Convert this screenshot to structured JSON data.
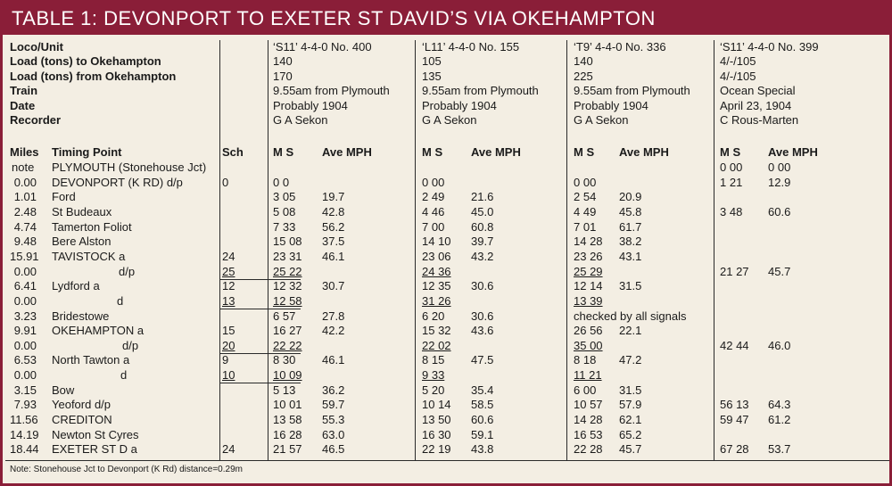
{
  "title": "TABLE 1: DEVONPORT TO EXETER ST DAVID’S VIA OKEHAMPTON",
  "info": [
    {
      "label": "Loco/Unit",
      "values": [
        "‘S11’ 4-4-0 No. 400",
        "‘L11’ 4-4-0 No. 155",
        "‘T9’ 4-4-0 No. 336",
        "‘S11’ 4-4-0 No. 399"
      ]
    },
    {
      "label": "Load (tons) to Okehampton",
      "values": [
        "140",
        "105",
        "140",
        "4/-/105"
      ]
    },
    {
      "label": "Load (tons) from Okehampton",
      "values": [
        "170",
        "135",
        "225",
        "4/-/105"
      ]
    },
    {
      "label": "Train",
      "values": [
        "9.55am from Plymouth",
        "9.55am from Plymouth",
        "9.55am from Plymouth",
        "Ocean Special"
      ]
    },
    {
      "label": "Date",
      "values": [
        "Probably 1904",
        "Probably 1904",
        "Probably 1904",
        "April 23, 1904"
      ]
    },
    {
      "label": "Recorder",
      "values": [
        "G A Sekon",
        "G A Sekon",
        "G A Sekon",
        "C Rous-Marten"
      ]
    }
  ],
  "headers": {
    "miles": "Miles",
    "timing_point": "Timing Point",
    "sch": "Sch",
    "ms": "M S",
    "ave_mph": "Ave MPH"
  },
  "rows": [
    {
      "miles": "note",
      "point": "PLYMOUTH (Stonehouse Jct)",
      "sch": "",
      "r": [
        [
          "",
          ""
        ],
        [
          "",
          ""
        ],
        [
          "",
          ""
        ],
        [
          "0 00",
          "0 00"
        ]
      ]
    },
    {
      "miles": "0.00",
      "point": "DEVONPORT (K RD) d/p",
      "sch": "0",
      "r": [
        [
          "0 0",
          ""
        ],
        [
          "0 00",
          ""
        ],
        [
          "0 00",
          ""
        ],
        [
          "1 21",
          "12.9"
        ]
      ]
    },
    {
      "miles": "1.01",
      "point": "Ford",
      "sch": "",
      "r": [
        [
          "3 05",
          "19.7"
        ],
        [
          "2 49",
          "21.6"
        ],
        [
          "2 54",
          "20.9"
        ],
        [
          "",
          ""
        ]
      ]
    },
    {
      "miles": "2.48",
      "point": "St Budeaux",
      "sch": "",
      "r": [
        [
          "5 08",
          "42.8"
        ],
        [
          "4 46",
          "45.0"
        ],
        [
          "4 49",
          "45.8"
        ],
        [
          "3 48",
          "60.6"
        ]
      ]
    },
    {
      "miles": "4.74",
      "point": "Tamerton Foliot",
      "sch": "",
      "r": [
        [
          "7 33",
          "56.2"
        ],
        [
          "7 00",
          "60.8"
        ],
        [
          "7 01",
          "61.7"
        ],
        [
          "",
          ""
        ]
      ]
    },
    {
      "miles": "9.48",
      "point": "Bere Alston",
      "sch": "",
      "r": [
        [
          "15 08",
          "37.5"
        ],
        [
          "14 10",
          "39.7"
        ],
        [
          "14 28",
          "38.2"
        ],
        [
          "",
          ""
        ]
      ]
    },
    {
      "miles": "15.91",
      "point": "TAVISTOCK a",
      "sch": "24",
      "r": [
        [
          "23 31",
          "46.1"
        ],
        [
          "23 06",
          "43.2"
        ],
        [
          "23 26",
          "43.1"
        ],
        [
          "",
          ""
        ]
      ]
    },
    {
      "miles": "0.00",
      "point": "d/p",
      "sch": "25",
      "r": [
        [
          "25 22",
          ""
        ],
        [
          "24 36",
          ""
        ],
        [
          "25 29",
          ""
        ],
        [
          "21 27",
          "45.7"
        ]
      ]
    },
    {
      "miles": "6.41",
      "point": "Lydford a",
      "sch": "12",
      "r": [
        [
          "12 32",
          "30.7"
        ],
        [
          "12 35",
          "30.6"
        ],
        [
          "12 14",
          "31.5"
        ],
        [
          "",
          ""
        ]
      ]
    },
    {
      "miles": "0.00",
      "point": "d",
      "sch": "13",
      "r": [
        [
          "12 58",
          ""
        ],
        [
          "31 26",
          ""
        ],
        [
          "13 39",
          ""
        ],
        [
          "",
          ""
        ]
      ]
    },
    {
      "miles": "3.23",
      "point": "Bridestowe",
      "sch": "",
      "r": [
        [
          "6 57",
          "27.8"
        ],
        [
          "6 20",
          "30.6"
        ],
        [
          "checked by all signals",
          ""
        ],
        [
          "",
          ""
        ]
      ]
    },
    {
      "miles": "9.91",
      "point": "OKEHAMPTON a",
      "sch": "15",
      "r": [
        [
          "16 27",
          "42.2"
        ],
        [
          "15 32",
          "43.6"
        ],
        [
          "26 56",
          "22.1"
        ],
        [
          "",
          ""
        ]
      ]
    },
    {
      "miles": "0.00",
      "point": "d/p",
      "sch": "20",
      "r": [
        [
          "22 22",
          ""
        ],
        [
          "22 02",
          ""
        ],
        [
          "35 00",
          ""
        ],
        [
          "42 44",
          "46.0"
        ]
      ]
    },
    {
      "miles": "6.53",
      "point": "North Tawton a",
      "sch": "9",
      "r": [
        [
          "8 30",
          "46.1"
        ],
        [
          "8 15",
          "47.5"
        ],
        [
          "8 18",
          "47.2"
        ],
        [
          "",
          ""
        ]
      ]
    },
    {
      "miles": "0.00",
      "point": "d",
      "sch": "10",
      "r": [
        [
          "10 09",
          ""
        ],
        [
          "9 33",
          ""
        ],
        [
          "11 21",
          ""
        ],
        [
          "",
          ""
        ]
      ]
    },
    {
      "miles": "3.15",
      "point": "Bow",
      "sch": "",
      "r": [
        [
          "5 13",
          "36.2"
        ],
        [
          "5 20",
          "35.4"
        ],
        [
          "6 00",
          "31.5"
        ],
        [
          "",
          ""
        ]
      ]
    },
    {
      "miles": "7.93",
      "point": "Yeoford d/p",
      "sch": "",
      "r": [
        [
          "10 01",
          "59.7"
        ],
        [
          "10 14",
          "58.5"
        ],
        [
          "10 57",
          "57.9"
        ],
        [
          "56 13",
          "64.3"
        ]
      ]
    },
    {
      "miles": "11.56",
      "point": "CREDITON",
      "sch": "",
      "r": [
        [
          "13 58",
          "55.3"
        ],
        [
          "13 50",
          "60.6"
        ],
        [
          "14 28",
          "62.1"
        ],
        [
          "59 47",
          "61.2"
        ]
      ]
    },
    {
      "miles": "14.19",
      "point": "Newton St Cyres",
      "sch": "",
      "r": [
        [
          "16 28",
          "63.0"
        ],
        [
          "16 30",
          "59.1"
        ],
        [
          "16 53",
          "65.2"
        ],
        [
          "",
          ""
        ]
      ]
    },
    {
      "miles": "18.44",
      "point": "EXETER ST D a",
      "sch": "24",
      "r": [
        [
          "21 57",
          "46.5"
        ],
        [
          "22 19",
          "43.8"
        ],
        [
          "22 28",
          "45.7"
        ],
        [
          "67 28",
          "53.7"
        ]
      ]
    }
  ],
  "note": "Note: Stonehouse Jct to Devonport (K Rd) distance=0.29m",
  "colors": {
    "title_bar": "#8a1e38",
    "background": "#f3eee3",
    "text": "#1a1a1a"
  }
}
